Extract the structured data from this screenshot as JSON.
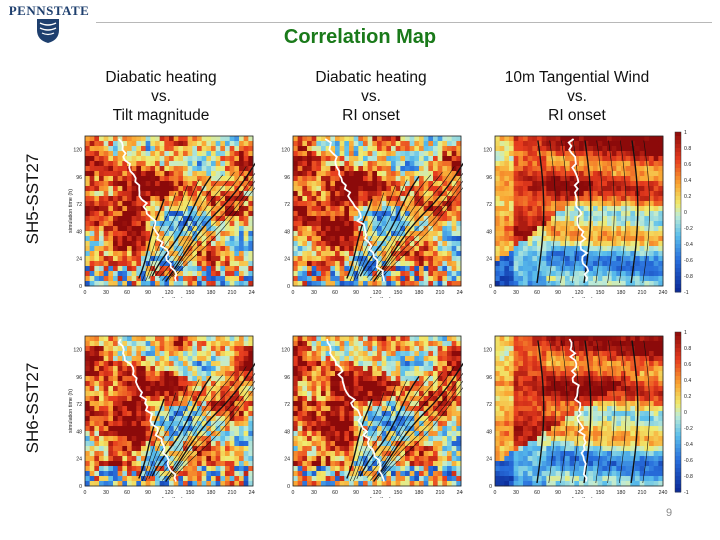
{
  "header": {
    "logo_text": "PENNSTATE",
    "title": "Correlation Map",
    "page_number": "9"
  },
  "columns": [
    {
      "line1": "Diabatic heating",
      "line2": "vs.",
      "line3": "Tilt magnitude"
    },
    {
      "line1": "Diabatic heating",
      "line2": "vs.",
      "line3": "RI onset"
    },
    {
      "line1": "10m Tangential Wind",
      "line2": "vs.",
      "line3": "RI onset"
    }
  ],
  "rows": [
    {
      "label": "SH5-SST27"
    },
    {
      "label": "SH6-SST27"
    }
  ],
  "colors": {
    "title": "#1a7a1a",
    "logo": "#1e3f6e"
  },
  "chart_data": {
    "type": "heatmap",
    "layout": "2 rows x 3 columns of correlation maps",
    "xlabel": "radius (km)",
    "ylabel": "simulation time (h)",
    "x_ticks": [
      0,
      30,
      60,
      90,
      120,
      150,
      180,
      210,
      240
    ],
    "y_ticks": [
      0,
      24,
      48,
      72,
      96,
      120
    ],
    "xlim": [
      0,
      240
    ],
    "ylim": [
      0,
      132
    ],
    "colorbar_ticks": [
      "1",
      "0.8",
      "0.6",
      "0.4",
      "0.2",
      "0",
      "-0.2",
      "-0.4",
      "-0.6",
      "-0.8",
      "-1"
    ],
    "colorbar_range": [
      -1,
      1
    ],
    "colormap": "red (+1) to blue (-1)",
    "overlay": "black contour lines with white tracer line"
  }
}
